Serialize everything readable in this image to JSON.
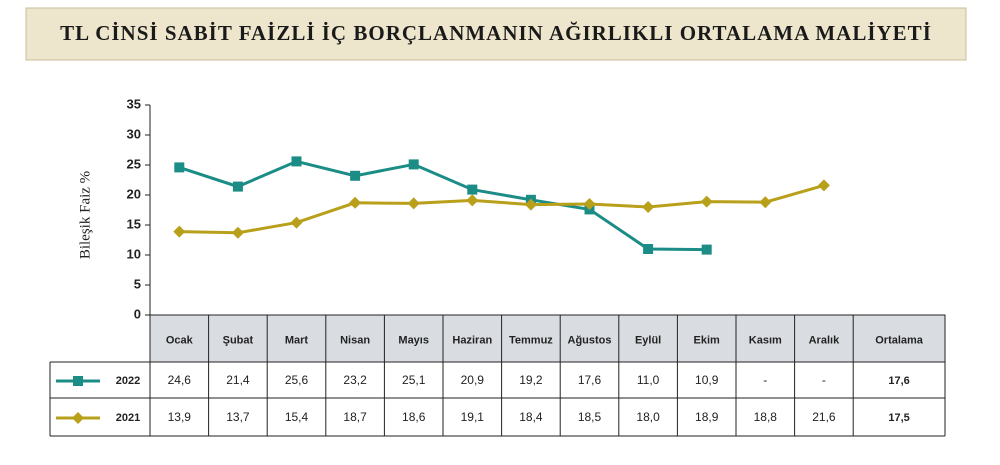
{
  "chart_data": {
    "type": "line",
    "title": "TL CİNSİ SABİT FAİZLİ İÇ BORÇLANMANIN AĞIRLIKLI ORTALAMA MALİYETİ",
    "y_label": "Bileşik Faiz %",
    "categories": [
      "Ocak",
      "Şubat",
      "Mart",
      "Nisan",
      "Mayıs",
      "Haziran",
      "Temmuz",
      "Ağustos",
      "Eylül",
      "Ekim",
      "Kasım",
      "Aralık"
    ],
    "average_header": "Ortalama",
    "series": [
      {
        "name": "2022",
        "color": "#1b8c86",
        "marker": "square",
        "values": [
          24.6,
          21.4,
          25.6,
          23.2,
          25.1,
          20.9,
          19.2,
          17.6,
          11.0,
          10.9,
          null,
          null
        ],
        "value_labels": [
          "24,6",
          "21,4",
          "25,6",
          "23,2",
          "25,1",
          "20,9",
          "19,2",
          "17,6",
          "11,0",
          "10,9",
          "-",
          "-"
        ],
        "average": 17.6,
        "average_label": "17,6"
      },
      {
        "name": "2021",
        "color": "#b9a01b",
        "marker": "diamond",
        "values": [
          13.9,
          13.7,
          15.4,
          18.7,
          18.6,
          19.1,
          18.4,
          18.5,
          18.0,
          18.9,
          18.8,
          21.6
        ],
        "value_labels": [
          "13,9",
          "13,7",
          "15,4",
          "18,7",
          "18,6",
          "19,1",
          "18,4",
          "18,5",
          "18,0",
          "18,9",
          "18,8",
          "21,6"
        ],
        "average": 17.5,
        "average_label": "17,5"
      }
    ],
    "ylim": [
      0,
      35
    ],
    "yticks": [
      0,
      5,
      10,
      15,
      20,
      25,
      30,
      35
    ],
    "grid": false
  }
}
